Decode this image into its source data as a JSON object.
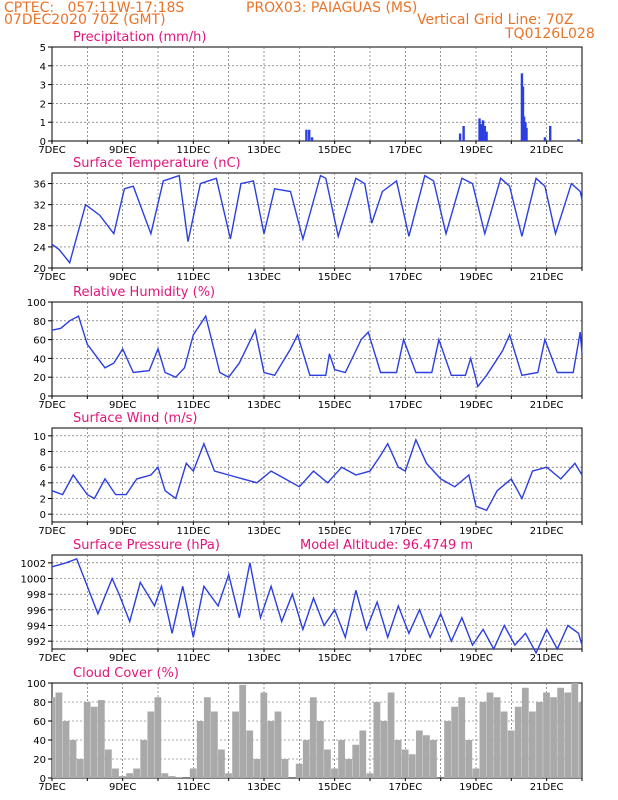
{
  "header": {
    "line1_left": "CPTEC:   057:11W-17:18S",
    "line1_mid": "PROX03: PAIAGUAS (MS)",
    "line2_left": "07DEC2020 70Z (GMT)",
    "line2_right": "Vertical Grid Line: 70Z",
    "line3_right": "TQ0126L028"
  },
  "colors": {
    "header": "#e8742a",
    "title": "#e0157a",
    "line": "#2c3fe0",
    "cloud": "#a9a9a9"
  },
  "chart_data": [
    {
      "type": "bar",
      "title": "Precipitation (mm/h)",
      "ylim": [
        0,
        5
      ],
      "yticks": [
        0,
        1,
        2,
        3,
        4,
        5
      ],
      "xticks": [
        "7DEC",
        "9DEC",
        "11DEC",
        "13DEC",
        "15DEC",
        "17DEC",
        "19DEC",
        "21DEC"
      ],
      "x_range": [
        7,
        22
      ],
      "x": [
        14.2,
        14.28,
        14.36,
        18.55,
        18.65,
        19.1,
        19.15,
        19.2,
        19.25,
        19.3,
        20.3,
        20.33,
        20.36,
        20.4,
        20.43,
        20.95,
        21.1,
        21.9
      ],
      "values": [
        0.6,
        0.6,
        0.2,
        0.4,
        0.8,
        1.2,
        0.9,
        1.1,
        0.8,
        0.5,
        3.6,
        2.9,
        1.3,
        1.0,
        0.7,
        0.2,
        0.8,
        0.1
      ]
    },
    {
      "type": "line",
      "title": "Surface Temperature (nC)",
      "ylim": [
        20,
        38
      ],
      "yticks": [
        20,
        24,
        28,
        32,
        36
      ],
      "xticks": [
        "7DEC",
        "9DEC",
        "11DEC",
        "13DEC",
        "15DEC",
        "17DEC",
        "19DEC",
        "21DEC"
      ],
      "x_range": [
        7,
        22
      ],
      "x": [
        7.0,
        7.2,
        7.5,
        7.95,
        8.35,
        8.75,
        9.05,
        9.3,
        9.8,
        10.15,
        10.6,
        10.85,
        11.2,
        11.65,
        12.05,
        12.35,
        12.7,
        13.0,
        13.3,
        13.75,
        14.1,
        14.6,
        14.75,
        15.1,
        15.6,
        15.85,
        16.05,
        16.35,
        16.75,
        17.1,
        17.55,
        17.8,
        18.15,
        18.6,
        18.9,
        19.25,
        19.7,
        19.95,
        20.3,
        20.7,
        20.95,
        21.25,
        21.7,
        21.95,
        22.0
      ],
      "values": [
        24.5,
        23.5,
        21.0,
        32.0,
        30.0,
        26.5,
        35.0,
        35.5,
        26.5,
        36.5,
        37.5,
        25.0,
        36.0,
        37.0,
        25.5,
        36.0,
        36.5,
        26.5,
        35.0,
        34.5,
        25.5,
        37.5,
        37.0,
        26.0,
        37.0,
        36.0,
        28.5,
        34.5,
        36.5,
        26.0,
        37.5,
        36.5,
        26.5,
        37.0,
        36.0,
        26.5,
        37.0,
        35.5,
        26.0,
        37.0,
        35.5,
        26.5,
        36.0,
        34.5,
        33.0
      ]
    },
    {
      "type": "line",
      "title": "Relative Humidity (%)",
      "ylim": [
        0,
        100
      ],
      "yticks": [
        0,
        20,
        40,
        60,
        80,
        100
      ],
      "xticks": [
        "7DEC",
        "9DEC",
        "11DEC",
        "13DEC",
        "15DEC",
        "17DEC",
        "19DEC",
        "21DEC"
      ],
      "x_range": [
        7,
        22
      ],
      "x": [
        7.0,
        7.25,
        7.5,
        7.75,
        8.0,
        8.5,
        8.75,
        9.0,
        9.3,
        9.75,
        10.0,
        10.2,
        10.5,
        10.75,
        11.0,
        11.35,
        11.75,
        12.0,
        12.3,
        12.75,
        13.0,
        13.3,
        13.75,
        13.95,
        14.3,
        14.75,
        14.85,
        15.0,
        15.3,
        15.75,
        15.95,
        16.3,
        16.75,
        16.95,
        17.3,
        17.75,
        17.95,
        18.3,
        18.7,
        18.85,
        19.05,
        19.3,
        19.75,
        19.95,
        20.3,
        20.75,
        20.95,
        21.3,
        21.75,
        21.95,
        22.0
      ],
      "values": [
        70,
        72,
        80,
        85,
        55,
        30,
        35,
        50,
        25,
        27,
        50,
        25,
        20,
        30,
        65,
        85,
        25,
        20,
        35,
        70,
        25,
        22,
        50,
        65,
        22,
        22,
        45,
        28,
        25,
        60,
        68,
        25,
        25,
        60,
        25,
        25,
        60,
        22,
        22,
        40,
        10,
        22,
        48,
        65,
        22,
        25,
        60,
        25,
        25,
        68,
        45
      ]
    },
    {
      "type": "line",
      "title": "Surface Wind (m/s)",
      "ylim": [
        -1,
        11
      ],
      "yticks": [
        0,
        2,
        4,
        6,
        8,
        10
      ],
      "xticks": [
        "7DEC",
        "9DEC",
        "11DEC",
        "13DEC",
        "15DEC",
        "17DEC",
        "19DEC",
        "21DEC"
      ],
      "x_range": [
        7,
        22
      ],
      "x": [
        7.0,
        7.3,
        7.6,
        8.0,
        8.2,
        8.5,
        8.8,
        9.1,
        9.4,
        9.8,
        10.0,
        10.2,
        10.5,
        10.8,
        11.0,
        11.3,
        11.6,
        12.0,
        12.4,
        12.8,
        13.2,
        13.6,
        14.0,
        14.4,
        14.8,
        15.2,
        15.6,
        16.0,
        16.3,
        16.5,
        16.8,
        17.0,
        17.3,
        17.6,
        18.0,
        18.4,
        18.8,
        19.0,
        19.3,
        19.6,
        20.0,
        20.3,
        20.6,
        21.0,
        21.4,
        21.8,
        22.0
      ],
      "values": [
        3.0,
        2.5,
        5.0,
        2.5,
        2.0,
        4.5,
        2.5,
        2.5,
        4.5,
        5.0,
        6.0,
        3.0,
        2.0,
        6.5,
        5.5,
        9.0,
        5.5,
        5.0,
        4.5,
        4.0,
        5.5,
        4.5,
        3.5,
        5.5,
        4.0,
        6.0,
        5.0,
        5.5,
        7.5,
        9.0,
        6.0,
        5.5,
        9.5,
        6.5,
        4.5,
        3.5,
        5.0,
        1.0,
        0.5,
        3.0,
        4.5,
        2.0,
        5.5,
        6.0,
        4.5,
        6.5,
        5.0
      ]
    },
    {
      "type": "line",
      "title": "Surface Pressure (hPa)",
      "annotation": "Model Altitude: 96.4749 m",
      "ylim": [
        991,
        1003
      ],
      "yticks": [
        992,
        994,
        996,
        998,
        1000,
        1002
      ],
      "xticks": [
        "7DEC",
        "9DEC",
        "11DEC",
        "13DEC",
        "15DEC",
        "17DEC",
        "19DEC",
        "21DEC"
      ],
      "x_range": [
        7,
        22
      ],
      "x": [
        7.0,
        7.4,
        7.7,
        8.0,
        8.3,
        8.7,
        8.9,
        9.2,
        9.5,
        9.9,
        10.1,
        10.4,
        10.7,
        11.0,
        11.3,
        11.7,
        12.0,
        12.3,
        12.6,
        12.9,
        13.2,
        13.5,
        13.8,
        14.1,
        14.4,
        14.7,
        15.0,
        15.3,
        15.6,
        15.9,
        16.2,
        16.5,
        16.8,
        17.1,
        17.4,
        17.7,
        18.0,
        18.3,
        18.6,
        18.9,
        19.2,
        19.5,
        19.8,
        20.1,
        20.4,
        20.7,
        21.0,
        21.3,
        21.6,
        21.9,
        22.0
      ],
      "values": [
        1001.5,
        1002.0,
        1002.5,
        999.0,
        995.5,
        1000.0,
        998.0,
        994.5,
        999.5,
        996.5,
        999.0,
        993.0,
        999.0,
        992.5,
        999.0,
        996.5,
        1000.5,
        995.0,
        1002.0,
        995.0,
        999.0,
        994.5,
        998.0,
        993.5,
        997.5,
        994.0,
        996.0,
        992.5,
        998.5,
        993.5,
        997.0,
        992.5,
        996.5,
        993.0,
        996.0,
        992.5,
        995.5,
        992.0,
        995.0,
        991.5,
        993.5,
        991.0,
        994.0,
        991.5,
        993.0,
        990.5,
        993.5,
        991.0,
        994.0,
        993.0,
        991.5
      ]
    },
    {
      "type": "area",
      "title": "Cloud Cover (%)",
      "ylim": [
        0,
        100
      ],
      "yticks": [
        0,
        20,
        40,
        60,
        80,
        100
      ],
      "xticks": [
        "7DEC",
        "9DEC",
        "11DEC",
        "13DEC",
        "15DEC",
        "17DEC",
        "19DEC",
        "21DEC"
      ],
      "x_range": [
        7,
        22
      ],
      "x": [
        7.0,
        7.1,
        7.3,
        7.5,
        7.7,
        7.9,
        8.1,
        8.3,
        8.5,
        8.7,
        8.9,
        9.1,
        9.3,
        9.5,
        9.7,
        9.9,
        10.1,
        10.3,
        10.5,
        10.7,
        10.9,
        11.1,
        11.3,
        11.5,
        11.7,
        11.9,
        12.1,
        12.3,
        12.5,
        12.7,
        12.9,
        13.1,
        13.3,
        13.5,
        13.7,
        13.9,
        14.1,
        14.3,
        14.5,
        14.7,
        14.9,
        15.1,
        15.3,
        15.5,
        15.7,
        15.9,
        16.1,
        16.3,
        16.5,
        16.7,
        16.9,
        17.1,
        17.3,
        17.5,
        17.7,
        17.9,
        18.1,
        18.3,
        18.5,
        18.7,
        18.9,
        19.1,
        19.3,
        19.5,
        19.7,
        19.9,
        20.1,
        20.3,
        20.5,
        20.7,
        20.9,
        21.1,
        21.3,
        21.5,
        21.7,
        21.9,
        22.0
      ],
      "values": [
        0,
        85,
        90,
        60,
        40,
        20,
        80,
        75,
        82,
        30,
        10,
        2,
        5,
        10,
        40,
        70,
        85,
        5,
        2,
        1,
        0,
        10,
        60,
        85,
        70,
        30,
        5,
        70,
        98,
        50,
        20,
        90,
        60,
        70,
        20,
        0,
        15,
        40,
        85,
        60,
        30,
        10,
        40,
        20,
        35,
        50,
        5,
        80,
        60,
        90,
        40,
        30,
        25,
        50,
        45,
        40,
        0,
        60,
        75,
        85,
        40,
        10,
        80,
        90,
        85,
        70,
        50,
        75,
        95,
        70,
        80,
        90,
        85,
        95,
        90,
        100,
        80
      ]
    }
  ]
}
